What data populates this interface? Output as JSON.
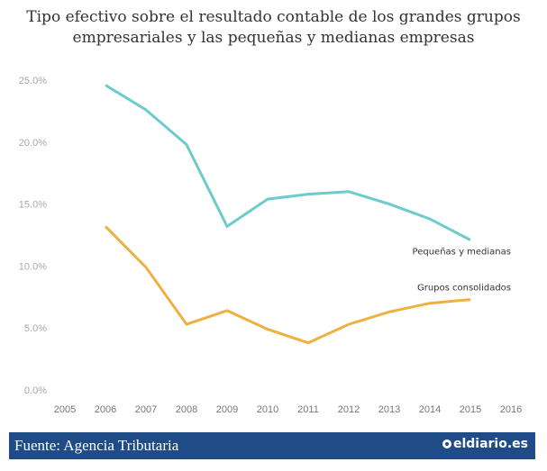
{
  "title_line1": "Tipo efectivo sobre el resultado contable de los grandes grupos",
  "title_line2": "empresariales y las pequeñas y medianas empresas",
  "footer": {
    "source": "Fuente: Agencia Tributaria",
    "brand": "eldiario.es"
  },
  "colors": {
    "pymes": "#6ecbcb",
    "grupos": "#efb040",
    "footer_bg": "#1f4c86"
  },
  "chart_data": {
    "type": "line",
    "title": "Tipo efectivo sobre el resultado contable de los grandes grupos empresariales y las pequeñas y medianas empresas",
    "xlabel": "",
    "ylabel": "",
    "x_ticks": [
      "2005",
      "2006",
      "2007",
      "2008",
      "2009",
      "2010",
      "2011",
      "2012",
      "2013",
      "2014",
      "2015",
      "2016"
    ],
    "xlim": [
      2005,
      2016
    ],
    "y_ticks": [
      "0.0%",
      "5.0%",
      "10.0%",
      "15.0%",
      "20.0%",
      "25.0%"
    ],
    "ylim": [
      0,
      25
    ],
    "grid": false,
    "x": [
      2006,
      2007,
      2008,
      2009,
      2010,
      2011,
      2012,
      2013,
      2014,
      2015
    ],
    "series": [
      {
        "name": "Pequeñas y medianas",
        "color": "#6ecbcb",
        "values": [
          24.6,
          22.6,
          19.8,
          13.2,
          15.4,
          15.8,
          16.0,
          15.0,
          13.8,
          12.1
        ]
      },
      {
        "name": "Grupos consolidados",
        "color": "#efb040",
        "values": [
          13.2,
          9.9,
          5.3,
          6.4,
          4.9,
          3.8,
          5.3,
          6.3,
          7.0,
          7.3
        ]
      }
    ]
  }
}
